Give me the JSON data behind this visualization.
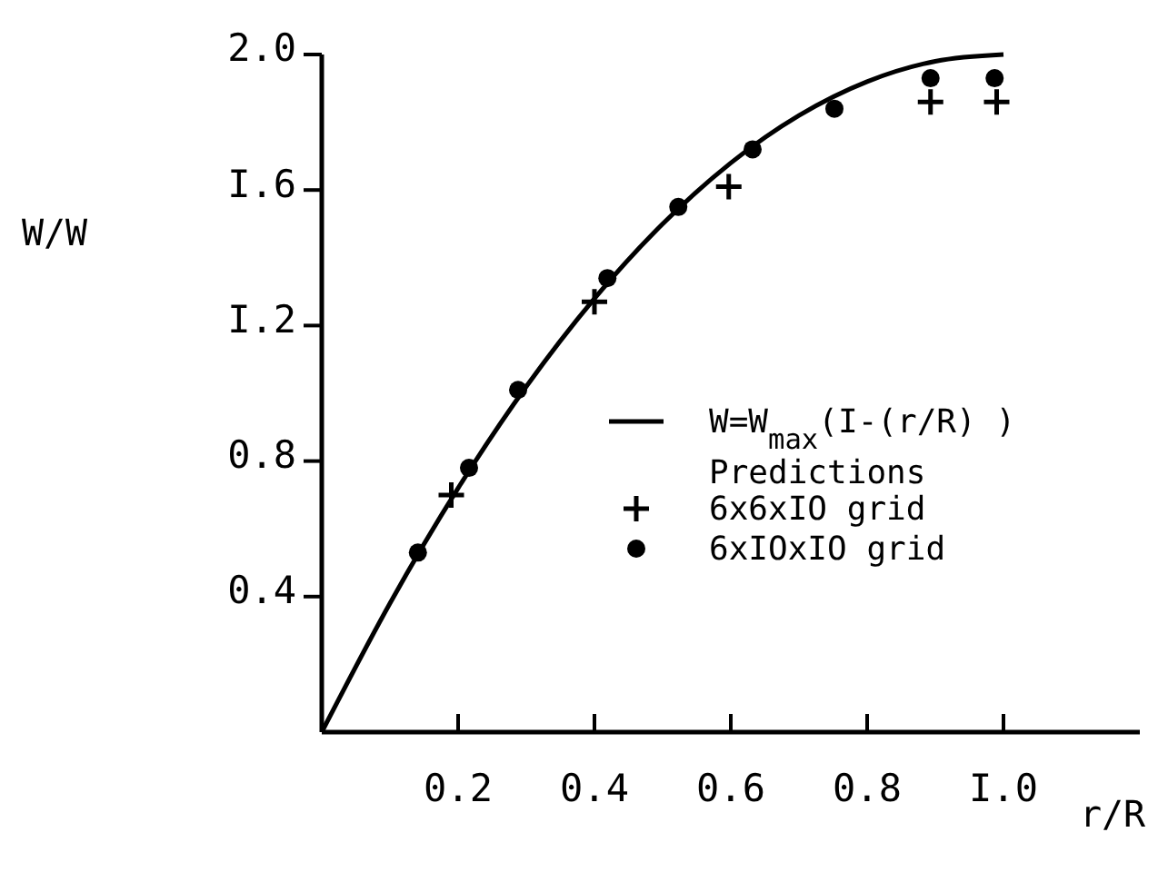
{
  "chart_data": {
    "type": "line",
    "xlabel": "r/R",
    "ylabel": "W/W",
    "xlim": [
      0,
      1.2
    ],
    "ylim": [
      0,
      2.0
    ],
    "xticks": [
      0.2,
      0.4,
      0.6,
      0.8,
      {
        "value": 1.0,
        "label": "I.0"
      }
    ],
    "yticks": [
      0.4,
      0.8,
      {
        "value": 1.2,
        "label": "I.2"
      },
      {
        "value": 1.6,
        "label": "I.6"
      },
      {
        "value": 2.0,
        "label": "2.0"
      }
    ],
    "grid": false,
    "legend": "bottom right",
    "annotations": [
      "Predictions"
    ],
    "series": [
      {
        "name": "W=W$_{max}$(I-(r/R)  )",
        "color": "#000000",
        "marker": "none",
        "line_style": "solid",
        "x": [
          0,
          0.1,
          0.2,
          0.3,
          0.4,
          0.5,
          0.6,
          0.7,
          0.8,
          0.9,
          1.0
        ],
        "values": [
          0,
          0.38,
          0.72,
          1.02,
          1.28,
          1.5,
          1.68,
          1.82,
          1.92,
          1.98,
          2.0
        ]
      },
      {
        "name": "6x6xIO grid",
        "type": "scatter",
        "color": "#000000",
        "marker": "cross",
        "x": [
          0.19,
          0.4,
          0.597,
          0.893,
          0.99
        ],
        "values": [
          0.7,
          1.27,
          1.61,
          1.86,
          1.86
        ]
      },
      {
        "name": "6xIOxIO grid",
        "type": "scatter",
        "color": "#000000",
        "marker": "circle",
        "x": [
          0.141,
          0.216,
          0.288,
          0.419,
          0.523,
          0.632,
          0.752,
          0.893,
          0.987
        ],
        "values": [
          0.53,
          0.78,
          1.01,
          1.34,
          1.55,
          1.72,
          1.84,
          1.93,
          1.93
        ]
      }
    ]
  }
}
